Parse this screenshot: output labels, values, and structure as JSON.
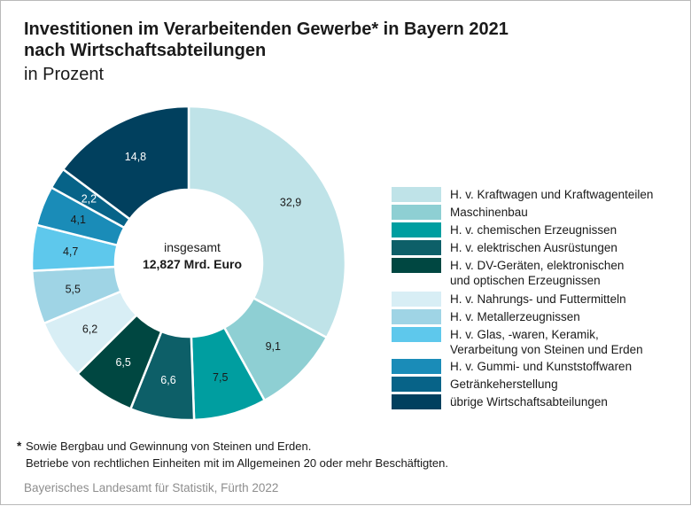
{
  "header": {
    "title_line1": "Investitionen im Verarbeitenden Gewerbe* in Bayern 2021",
    "title_line2": "nach Wirtschaftsabteilungen",
    "subtitle": "in Prozent"
  },
  "center": {
    "line1": "insgesamt",
    "line2": "12,827 Mrd. Euro"
  },
  "chart_data": {
    "type": "pie",
    "variant": "donut",
    "title": "Investitionen im Verarbeitenden Gewerbe* in Bayern 2021 nach Wirtschaftsabteilungen",
    "subtitle": "in Prozent",
    "total_label": "insgesamt 12,827 Mrd. Euro",
    "legend_position": "right",
    "slices": [
      {
        "name": "H. v. Kraftwagen und Kraftwagenteilen",
        "value": 32.9,
        "label": "32,9",
        "color": "#bfe3e8",
        "label_color": "#1a1a1a"
      },
      {
        "name": "Maschinenbau",
        "value": 9.1,
        "label": "9,1",
        "color": "#8ecfd3",
        "label_color": "#1a1a1a"
      },
      {
        "name": "H. v. chemischen Erzeugnissen",
        "value": 7.5,
        "label": "7,5",
        "color": "#009ea0",
        "label_color": "#1a1a1a"
      },
      {
        "name": "H. v. elektrischen Ausrüstungen",
        "value": 6.6,
        "label": "6,6",
        "color": "#0d5f68",
        "label_color": "#ffffff"
      },
      {
        "name": "H. v. DV-Geräten, elektronischen und optischen Erzeugnissen",
        "value": 6.5,
        "label": "6,5",
        "color": "#004741",
        "label_color": "#ffffff"
      },
      {
        "name": "H. v. Nahrungs- und Futtermitteln",
        "value": 6.2,
        "label": "6,2",
        "color": "#d8eef5",
        "label_color": "#1a1a1a"
      },
      {
        "name": "H. v. Metallerzeugnissen",
        "value": 5.5,
        "label": "5,5",
        "color": "#9fd4e5",
        "label_color": "#1a1a1a"
      },
      {
        "name": "H. v. Glas, -waren, Keramik, Verarbeitung von Steinen und Erden",
        "value": 4.7,
        "label": "4,7",
        "color": "#5ec8ec",
        "label_color": "#1a1a1a"
      },
      {
        "name": "H. v. Gummi- und Kunststoffwaren",
        "value": 4.1,
        "label": "4,1",
        "color": "#1a8cb8",
        "label_color": "#1a1a1a"
      },
      {
        "name": "Getränkeherstellung",
        "value": 2.2,
        "label": "2,2",
        "color": "#076388",
        "label_color": "#ffffff"
      },
      {
        "name": "übrige Wirtschaftsabteilungen",
        "value": 14.8,
        "label": "14,8",
        "color": "#01405e",
        "label_color": "#ffffff"
      }
    ]
  },
  "legend": {
    "items": [
      {
        "lines": [
          "H. v. Kraftwagen und Kraftwagenteilen"
        ],
        "color": "#bfe3e8"
      },
      {
        "lines": [
          "Maschinenbau"
        ],
        "color": "#8ecfd3"
      },
      {
        "lines": [
          "H. v. chemischen Erzeugnissen"
        ],
        "color": "#009ea0"
      },
      {
        "lines": [
          "H. v. elektrischen Ausrüstungen"
        ],
        "color": "#0d5f68"
      },
      {
        "lines": [
          "H. v. DV-Geräten, elektronischen",
          "und optischen Erzeugnissen"
        ],
        "color": "#004741"
      },
      {
        "lines": [
          "H. v. Nahrungs- und Futtermitteln"
        ],
        "color": "#d8eef5"
      },
      {
        "lines": [
          "H. v. Metallerzeugnissen"
        ],
        "color": "#9fd4e5"
      },
      {
        "lines": [
          "H. v. Glas, -waren, Keramik,",
          "Verarbeitung von Steinen und Erden"
        ],
        "color": "#5ec8ec"
      },
      {
        "lines": [
          "H. v. Gummi- und Kunststoffwaren"
        ],
        "color": "#1a8cb8"
      },
      {
        "lines": [
          "Getränkeherstellung"
        ],
        "color": "#076388"
      },
      {
        "lines": [
          "übrige Wirtschaftsabteilungen"
        ],
        "color": "#01405e"
      }
    ]
  },
  "footnote": {
    "mark": "*",
    "line1": "Sowie Bergbau und Gewinnung von Steinen und Erden.",
    "line2": "Betriebe von rechtlichen Einheiten mit im Allgemeinen 20 oder mehr Beschäftigten."
  },
  "source": "Bayerisches Landesamt für Statistik, Fürth 2022"
}
